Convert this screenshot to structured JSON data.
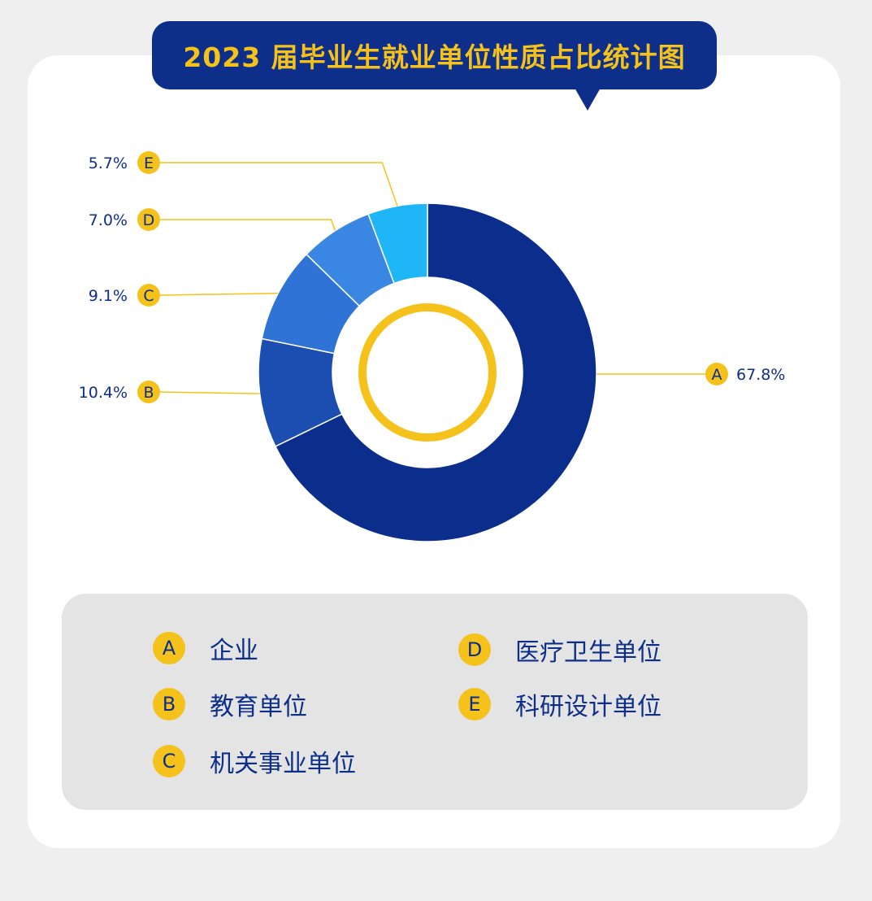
{
  "title": "2023 届毕业生就业单位性质占比统计图",
  "colors": {
    "background": "#efefef",
    "card": "#ffffff",
    "navy": "#0d2f8a",
    "yellow": "#f5c21b",
    "legend_bg": "#e4e4e4"
  },
  "chart_data": {
    "type": "pie",
    "variant": "donut",
    "title": "2023 届毕业生就业单位性质占比统计图",
    "slices": [
      {
        "key": "A",
        "name": "企业",
        "value": 67.8,
        "label": "67.8%",
        "color": "#0b2d8c"
      },
      {
        "key": "B",
        "name": "教育单位",
        "value": 10.4,
        "label": "10.4%",
        "color": "#1b4eb0"
      },
      {
        "key": "C",
        "name": "机关事业单位",
        "value": 9.1,
        "label": "9.1%",
        "color": "#2f73d6"
      },
      {
        "key": "D",
        "name": "医疗卫生单位",
        "value": 7.0,
        "label": "7.0%",
        "color": "#3a86e3"
      },
      {
        "key": "E",
        "name": "科研设计单位",
        "value": 5.7,
        "label": "5.7%",
        "color": "#1fb6f7"
      }
    ],
    "legend_placement": "bottom"
  },
  "legend": [
    {
      "key": "A",
      "label": "企业"
    },
    {
      "key": "B",
      "label": "教育单位"
    },
    {
      "key": "C",
      "label": "机关事业单位"
    },
    {
      "key": "D",
      "label": "医疗卫生单位"
    },
    {
      "key": "E",
      "label": "科研设计单位"
    }
  ]
}
